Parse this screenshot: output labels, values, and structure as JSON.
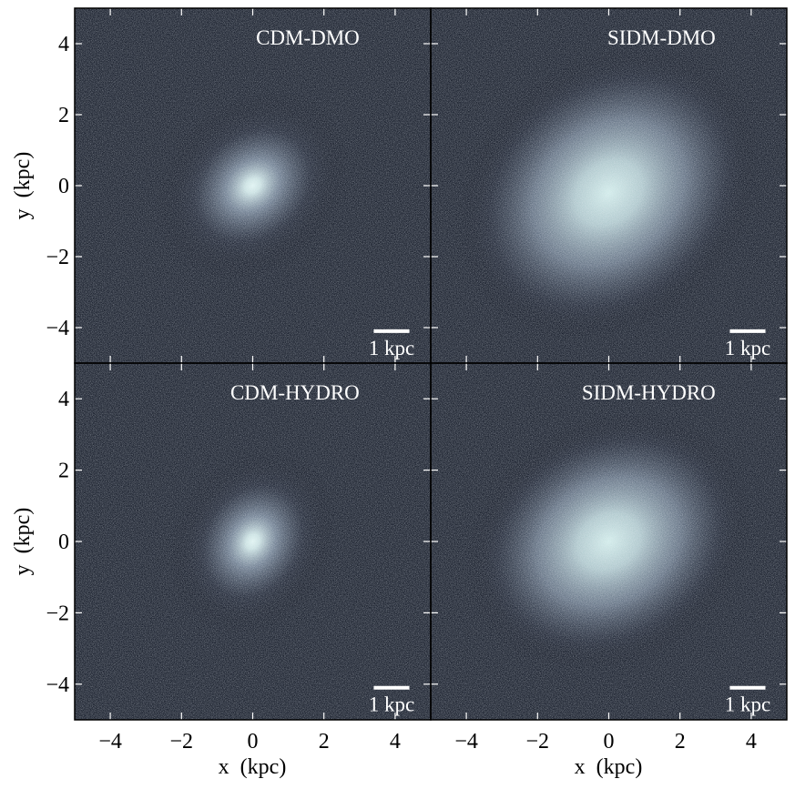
{
  "figure": {
    "xlabel": "x  (kpc)",
    "ylabel": "y  (kpc)"
  },
  "chart_data": [
    {
      "type": "heatmap",
      "panel": "top-left",
      "title": "CDM-DMO",
      "xlim": [
        -5,
        5
      ],
      "ylim": [
        -5,
        5
      ],
      "xticks": [
        -4,
        -2,
        0,
        2,
        4
      ],
      "yticks": [
        -4,
        -2,
        0,
        2,
        4
      ],
      "tick_labels": [
        "−4",
        "−2",
        "0",
        "2",
        "4"
      ],
      "scalebar_label": "1 kpc",
      "scalebar_length_kpc": 1,
      "center": [
        0,
        0
      ],
      "core_size_kpc": 1.4,
      "concentration": "cuspy",
      "ellipticity_angle_deg": 40
    },
    {
      "type": "heatmap",
      "panel": "top-right",
      "title": "SIDM-DMO",
      "xlim": [
        -5,
        5
      ],
      "ylim": [
        -5,
        5
      ],
      "xticks": [
        -4,
        -2,
        0,
        2,
        4
      ],
      "yticks": [
        -4,
        -2,
        0,
        2,
        4
      ],
      "tick_labels": [
        "−4",
        "−2",
        "0",
        "2",
        "4"
      ],
      "scalebar_label": "1 kpc",
      "scalebar_length_kpc": 1,
      "center": [
        0,
        -0.2
      ],
      "core_size_kpc": 2.2,
      "concentration": "cored",
      "ellipticity_angle_deg": 40
    },
    {
      "type": "heatmap",
      "panel": "bottom-left",
      "title": "CDM-HYDRO",
      "xlim": [
        -5,
        5
      ],
      "ylim": [
        -5,
        5
      ],
      "xticks": [
        -4,
        -2,
        0,
        2,
        4
      ],
      "yticks": [
        -4,
        -2,
        0,
        2,
        4
      ],
      "tick_labels": [
        "−4",
        "−2",
        "0",
        "2",
        "4"
      ],
      "scalebar_label": "1 kpc",
      "scalebar_length_kpc": 1,
      "center": [
        0,
        0
      ],
      "core_size_kpc": 1.3,
      "concentration": "cuspy",
      "ellipticity_angle_deg": 60
    },
    {
      "type": "heatmap",
      "panel": "bottom-right",
      "title": "SIDM-HYDRO",
      "xlim": [
        -5,
        5
      ],
      "ylim": [
        -5,
        5
      ],
      "xticks": [
        -4,
        -2,
        0,
        2,
        4
      ],
      "yticks": [
        -4,
        -2,
        0,
        2,
        4
      ],
      "tick_labels": [
        "−4",
        "−2",
        "0",
        "2",
        "4"
      ],
      "scalebar_label": "1 kpc",
      "scalebar_length_kpc": 1,
      "center": [
        0,
        0
      ],
      "core_size_kpc": 2.0,
      "concentration": "cored",
      "ellipticity_angle_deg": 30
    }
  ],
  "colors": {
    "background": "#0b0e17",
    "core": "#e0f4f2",
    "mid": "#8ea0b4",
    "outer": "#2a3142",
    "annotation": "#ffffff",
    "axis": "#000000"
  }
}
